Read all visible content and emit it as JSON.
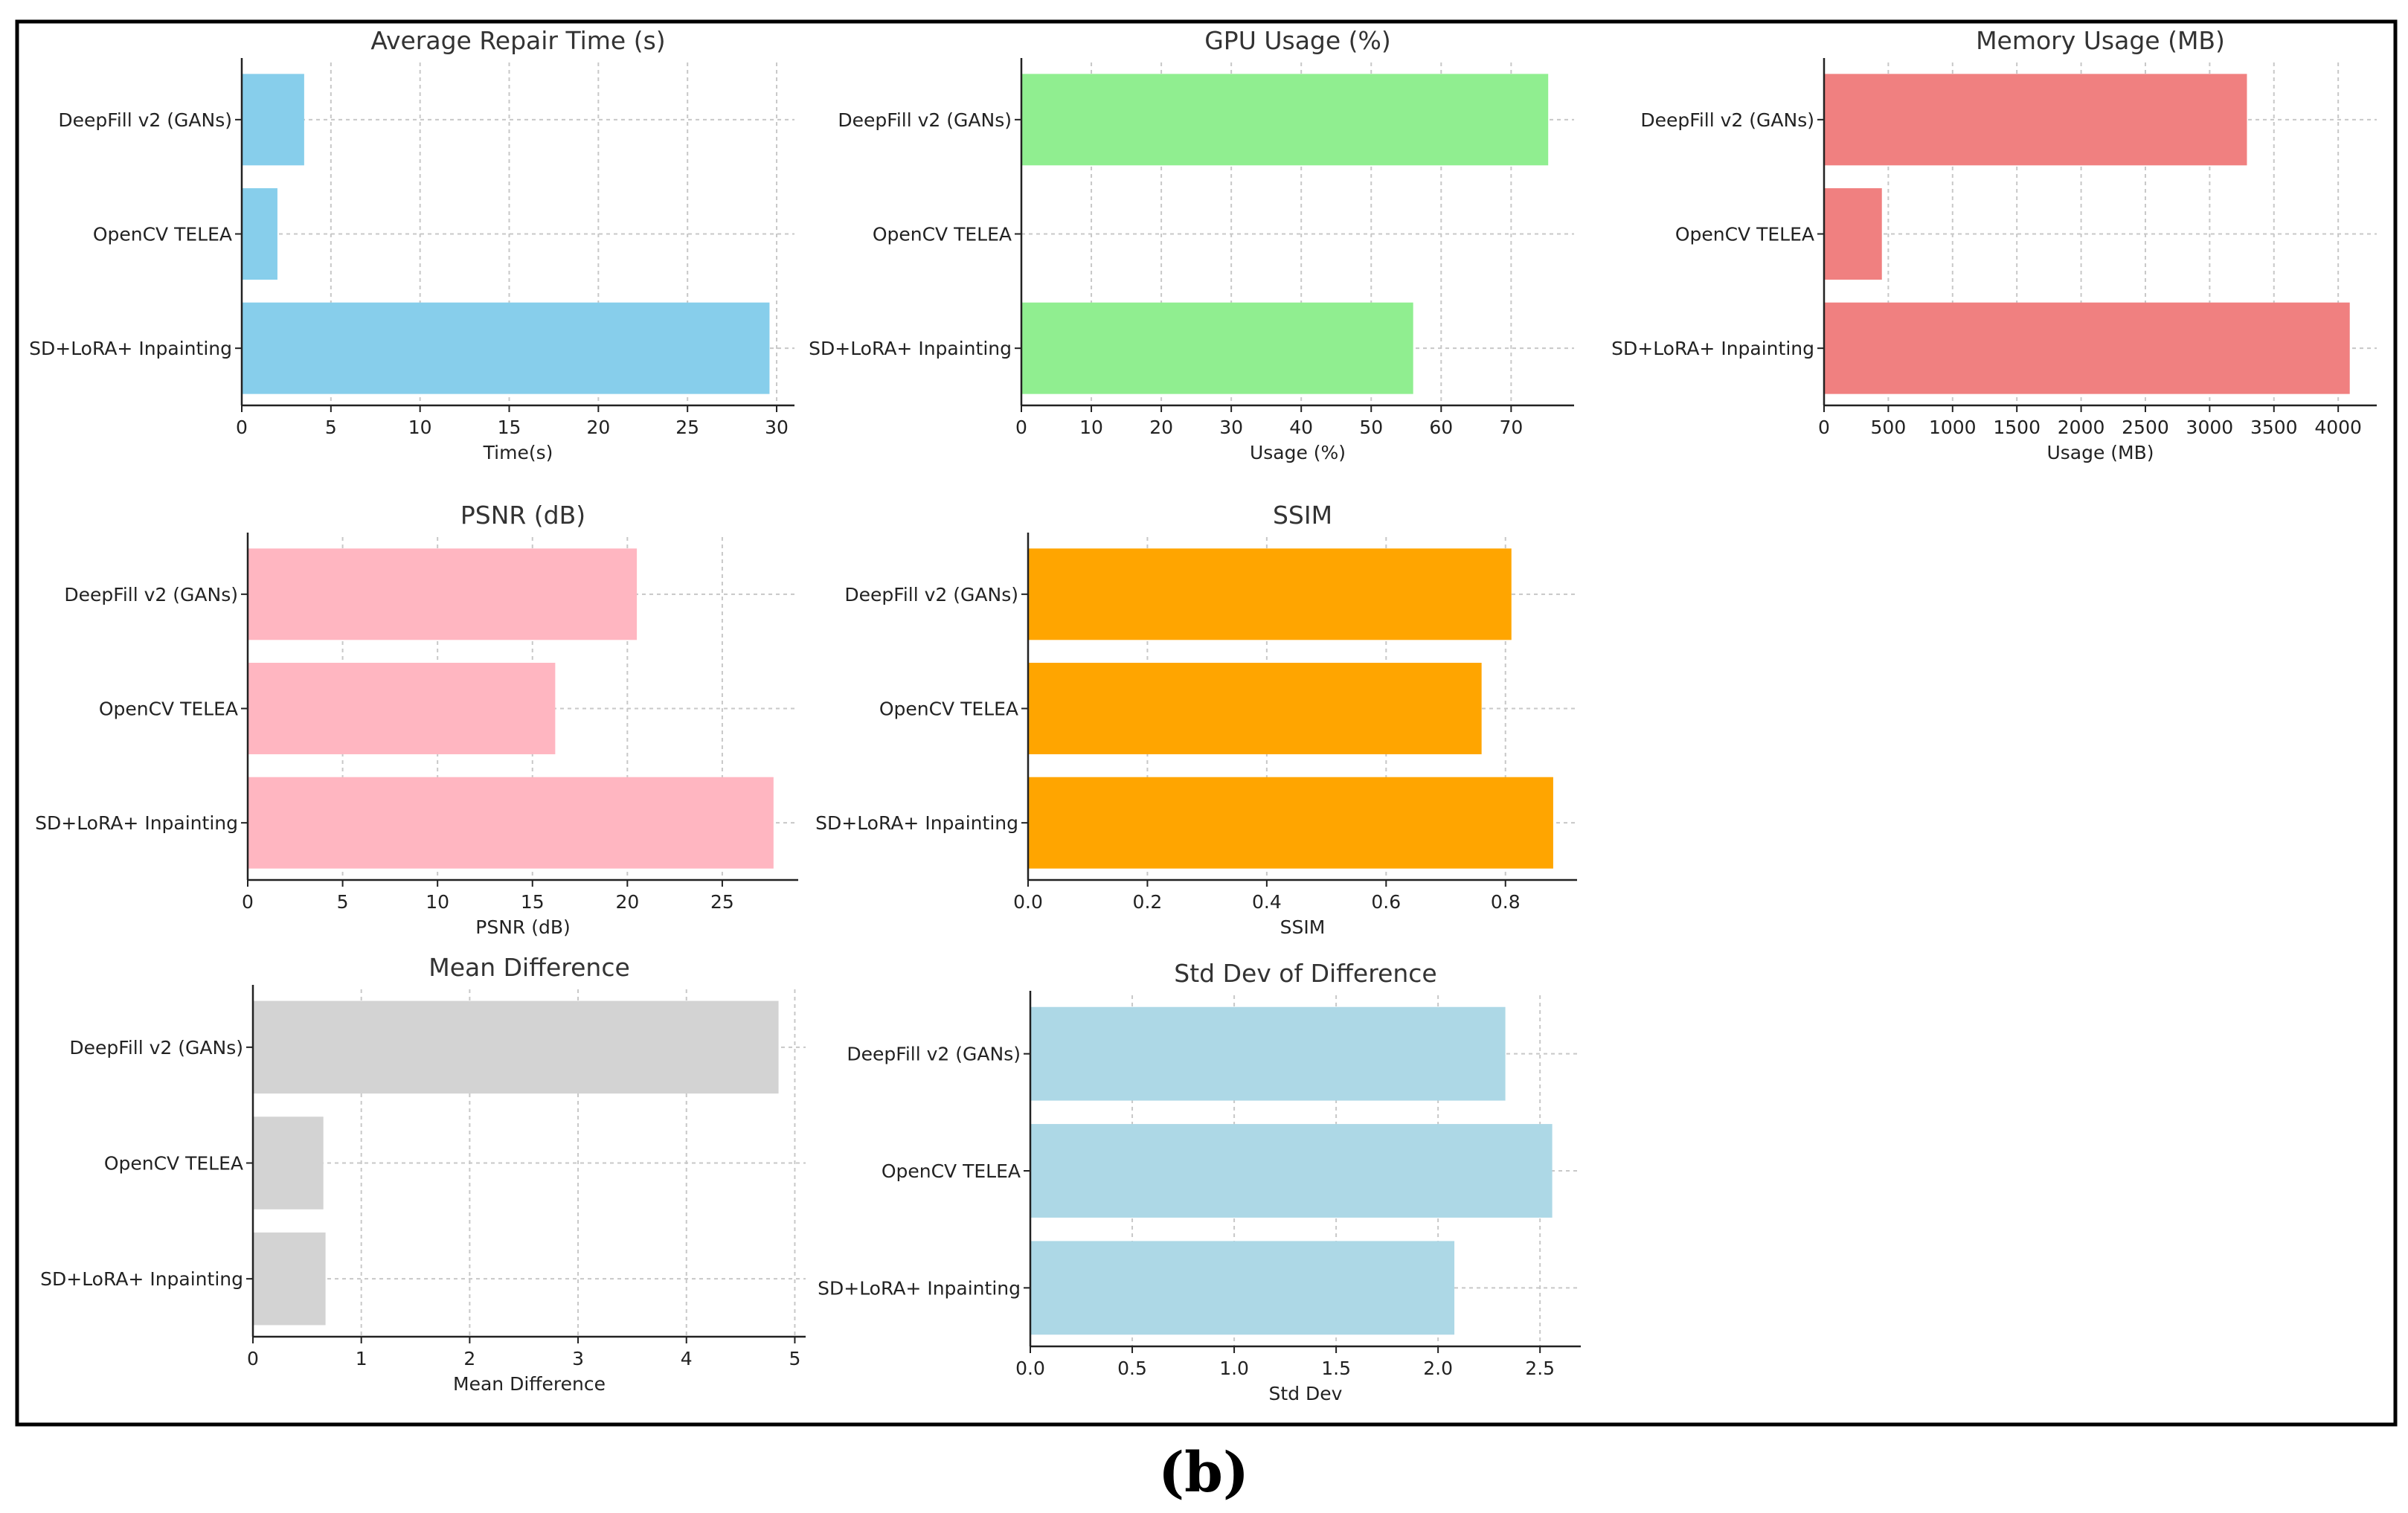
{
  "figure_caption": "(b)",
  "chart_data": [
    {
      "type": "bar",
      "orientation": "horizontal",
      "title": "Average Repair Time (s)",
      "xlabel": "Time(s)",
      "ylabel": "",
      "categories": [
        "DeepFill v2 (GANs)",
        "OpenCV TELEA",
        "SD+LoRA+ Inpainting"
      ],
      "values": [
        3.5,
        2.0,
        29.6
      ],
      "xlim": [
        0,
        31
      ],
      "xticks": [
        0,
        5,
        10,
        15,
        20,
        25,
        30
      ],
      "tick_labels": [
        "0",
        "5",
        "10",
        "15",
        "20",
        "25",
        "30"
      ],
      "color": "#87ceeb",
      "grid": true
    },
    {
      "type": "bar",
      "orientation": "horizontal",
      "title": "GPU Usage (%)",
      "xlabel": "Usage (%)",
      "ylabel": "",
      "categories": [
        "DeepFill v2 (GANs)",
        "OpenCV TELEA",
        "SD+LoRA+ Inpainting"
      ],
      "values": [
        75.3,
        0,
        56.0
      ],
      "xlim": [
        0,
        79
      ],
      "xticks": [
        0,
        10,
        20,
        30,
        40,
        50,
        60,
        70
      ],
      "tick_labels": [
        "0",
        "10",
        "20",
        "30",
        "40",
        "50",
        "60",
        "70"
      ],
      "color": "#90ee90",
      "grid": true
    },
    {
      "type": "bar",
      "orientation": "horizontal",
      "title": "Memory Usage (MB)",
      "xlabel": "Usage (MB)",
      "ylabel": "",
      "categories": [
        "DeepFill v2 (GANs)",
        "OpenCV TELEA",
        "SD+LoRA+ Inpainting"
      ],
      "values": [
        3290,
        450,
        4090
      ],
      "xlim": [
        0,
        4300
      ],
      "xticks": [
        0,
        500,
        1000,
        1500,
        2000,
        2500,
        3000,
        3500,
        4000
      ],
      "tick_labels": [
        "0",
        "500",
        "1000",
        "1500",
        "2000",
        "2500",
        "3000",
        "3500",
        "4000"
      ],
      "color": "#f08080",
      "grid": true
    },
    {
      "type": "bar",
      "orientation": "horizontal",
      "title": "PSNR (dB)",
      "xlabel": "PSNR (dB)",
      "ylabel": "",
      "categories": [
        "DeepFill v2 (GANs)",
        "OpenCV TELEA",
        "SD+LoRA+ Inpainting"
      ],
      "values": [
        20.5,
        16.2,
        27.7
      ],
      "xlim": [
        0,
        29
      ],
      "xticks": [
        0,
        5,
        10,
        15,
        20,
        25
      ],
      "tick_labels": [
        "0",
        "5",
        "10",
        "15",
        "20",
        "25"
      ],
      "color": "#ffb6c1",
      "grid": true
    },
    {
      "type": "bar",
      "orientation": "horizontal",
      "title": "SSIM",
      "xlabel": "SSIM",
      "ylabel": "",
      "categories": [
        "DeepFill v2 (GANs)",
        "OpenCV TELEA",
        "SD+LoRA+ Inpainting"
      ],
      "values": [
        0.81,
        0.76,
        0.88
      ],
      "xlim": [
        0,
        0.92
      ],
      "xticks": [
        0,
        0.2,
        0.4,
        0.6,
        0.8
      ],
      "tick_labels": [
        "0.0",
        "0.2",
        "0.4",
        "0.6",
        "0.8"
      ],
      "color": "#ffa500",
      "grid": true
    },
    {
      "type": "bar",
      "orientation": "horizontal",
      "title": "Mean Difference",
      "xlabel": "Mean Difference",
      "ylabel": "",
      "categories": [
        "DeepFill v2 (GANs)",
        "OpenCV TELEA",
        "SD+LoRA+ Inpainting"
      ],
      "values": [
        4.85,
        0.65,
        0.67
      ],
      "xlim": [
        0,
        5.1
      ],
      "xticks": [
        0,
        1,
        2,
        3,
        4,
        5
      ],
      "tick_labels": [
        "0",
        "1",
        "2",
        "3",
        "4",
        "5"
      ],
      "color": "#d3d3d3",
      "grid": true
    },
    {
      "type": "bar",
      "orientation": "horizontal",
      "title": "Std Dev of Difference",
      "xlabel": "Std Dev",
      "ylabel": "",
      "categories": [
        "DeepFill v2 (GANs)",
        "OpenCV TELEA",
        "SD+LoRA+ Inpainting"
      ],
      "values": [
        2.33,
        2.56,
        2.08
      ],
      "xlim": [
        0,
        2.7
      ],
      "xticks": [
        0,
        0.5,
        1.0,
        1.5,
        2.0,
        2.5
      ],
      "tick_labels": [
        "0.0",
        "0.5",
        "1.0",
        "1.5",
        "2.0",
        "2.5"
      ],
      "color": "#add8e6",
      "grid": true
    }
  ]
}
